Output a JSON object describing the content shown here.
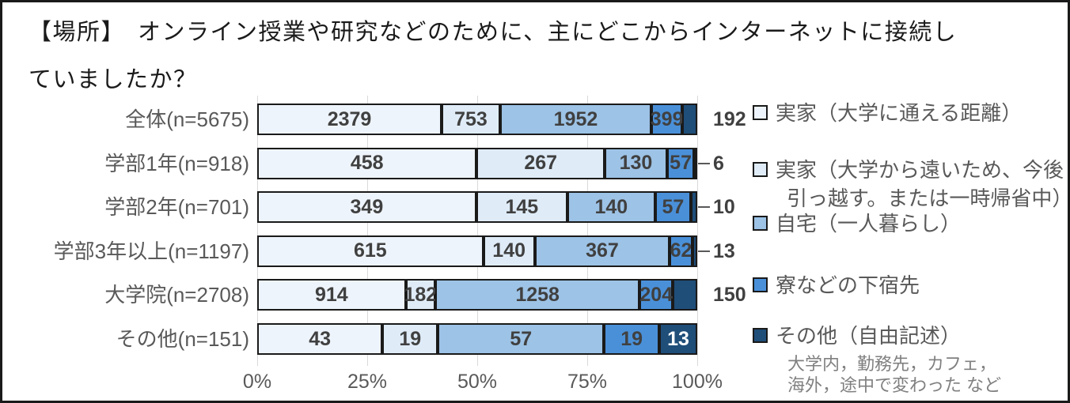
{
  "title_lines": [
    "【場所】　オンライン授業や研究などのために、主にどこからインターネットに接続し",
    "ていましたか？"
  ],
  "chart_data": {
    "type": "bar",
    "subtype": "horizontal-100pct-stacked",
    "title": "【場所】　オンライン授業や研究などのために、主にどこからインターネットに接続していましたか？",
    "categories": [
      "全体(n=5675)",
      "学部1年(n=918)",
      "学部2年(n=701)",
      "学部3年以上(n=1197)",
      "大学院(n=2708)",
      "その他(n=151)"
    ],
    "totals": [
      5675,
      918,
      701,
      1197,
      2708,
      151
    ],
    "series": [
      {
        "name": "実家（大学に通える距離）",
        "color": "#eef4fb",
        "values": [
          2379,
          458,
          349,
          615,
          914,
          43
        ]
      },
      {
        "name": "実家（大学から遠いため、今後引っ越す。または一時帰省中）",
        "color": "#dfecf8",
        "values": [
          753,
          267,
          145,
          140,
          182,
          19
        ]
      },
      {
        "name": "自宅（一人暮らし）",
        "color": "#9dc3e6",
        "values": [
          1952,
          130,
          140,
          367,
          1258,
          57
        ]
      },
      {
        "name": "寮などの下宿先",
        "color": "#4a90d9",
        "values": [
          399,
          57,
          57,
          62,
          204,
          19
        ]
      },
      {
        "name": "その他（自由記述）",
        "color": "#1f4e79",
        "values": [
          192,
          6,
          10,
          13,
          150,
          13
        ]
      }
    ],
    "x_ticks": [
      "0%",
      "25%",
      "50%",
      "75%",
      "100%"
    ],
    "xlim": [
      0,
      100
    ],
    "grid": true,
    "legend_position": "right",
    "last_value_label_style": [
      "outside",
      "outside-leader",
      "outside-leader",
      "outside-leader",
      "outside",
      "inside-white"
    ]
  },
  "legend": {
    "items": [
      {
        "label": "実家（大学に通える距離）",
        "lines": [
          "実家（大学に通える距離）"
        ],
        "color": "#eef4fb"
      },
      {
        "label": "実家（大学から遠いため、今後引っ越す。または一時帰省中）",
        "lines": [
          "実家（大学から遠いため、今後",
          "引っ越す。または一時帰省中）"
        ],
        "color": "#dfecf8"
      },
      {
        "label": "自宅（一人暮らし）",
        "lines": [
          "自宅（一人暮らし）"
        ],
        "color": "#9dc3e6"
      },
      {
        "label": "寮などの下宿先",
        "lines": [
          "寮などの下宿先"
        ],
        "color": "#4a90d9"
      },
      {
        "label": "その他（自由記述）",
        "lines": [
          "その他（自由記述）"
        ],
        "color": "#1f4e79",
        "note_lines": [
          "大学内，勤務先，カフェ，",
          "海外，途中で変わった など"
        ]
      }
    ]
  },
  "colors": {
    "segment_border": "#1a1a1a",
    "value_text": "#404040",
    "axis_text": "#595959",
    "gridline": "#d9d9d9",
    "note_text": "#808080"
  }
}
